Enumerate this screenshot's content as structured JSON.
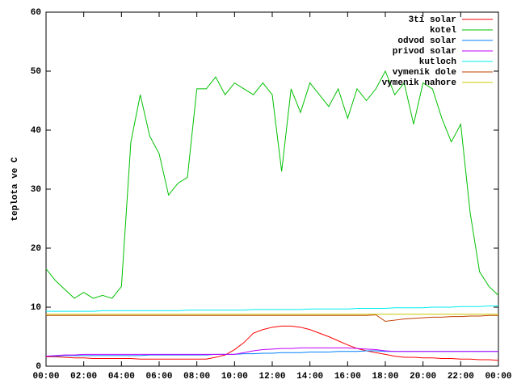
{
  "chart_data": {
    "type": "line",
    "y_label": "teplota ve C",
    "x": [
      0,
      0.5,
      1,
      1.5,
      2,
      2.5,
      3,
      3.5,
      4,
      4.5,
      5,
      5.5,
      6,
      6.5,
      7,
      7.5,
      8,
      8.5,
      9,
      9.5,
      10,
      10.5,
      11,
      11.5,
      12,
      12.5,
      13,
      13.5,
      14,
      14.5,
      15,
      15.5,
      16,
      16.5,
      17,
      17.5,
      18,
      18.5,
      19,
      19.5,
      20,
      20.5,
      21,
      21.5,
      22,
      22.5,
      23,
      23.5,
      24
    ],
    "xlim": [
      0,
      24
    ],
    "xticks": [
      {
        "value": 0,
        "label": "00:00"
      },
      {
        "value": 2,
        "label": "02:00"
      },
      {
        "value": 4,
        "label": "04:00"
      },
      {
        "value": 6,
        "label": "06:00"
      },
      {
        "value": 8,
        "label": "08:00"
      },
      {
        "value": 10,
        "label": "10:00"
      },
      {
        "value": 12,
        "label": "12:00"
      },
      {
        "value": 14,
        "label": "14:00"
      },
      {
        "value": 16,
        "label": "16:00"
      },
      {
        "value": 18,
        "label": "18:00"
      },
      {
        "value": 20,
        "label": "20:00"
      },
      {
        "value": 22,
        "label": "22:00"
      },
      {
        "value": 24,
        "label": "00:00"
      }
    ],
    "ylim": [
      0,
      60
    ],
    "yticks": [
      0,
      10,
      20,
      30,
      40,
      50,
      60
    ],
    "legend": "top-right",
    "series": [
      {
        "name": "3ti solar",
        "color": "#ff0000",
        "values": [
          1.6,
          1.6,
          1.5,
          1.4,
          1.4,
          1.3,
          1.3,
          1.3,
          1.3,
          1.3,
          1.2,
          1.2,
          1.2,
          1.2,
          1.2,
          1.2,
          1.2,
          1.2,
          1.5,
          1.9,
          2.8,
          4.0,
          5.6,
          6.2,
          6.6,
          6.8,
          6.8,
          6.6,
          6.2,
          5.6,
          5.0,
          4.3,
          3.6,
          3.0,
          2.6,
          2.3,
          2.0,
          1.7,
          1.5,
          1.5,
          1.4,
          1.4,
          1.3,
          1.3,
          1.2,
          1.2,
          1.1,
          1.1,
          1.0
        ]
      },
      {
        "name": "kotel",
        "color": "#00c000",
        "values": [
          16.5,
          14.5,
          13,
          11.5,
          12.5,
          11.5,
          12,
          11.5,
          13.5,
          38,
          46,
          39,
          36,
          29,
          31,
          32,
          47,
          47,
          49,
          46,
          48,
          47,
          46,
          48,
          46,
          33,
          47,
          43,
          48,
          46,
          44,
          47,
          42,
          47,
          45,
          47,
          50,
          46,
          48,
          41,
          48,
          47,
          42,
          38,
          41,
          26,
          16,
          13.5,
          12
        ]
      },
      {
        "name": "odvod solar",
        "color": "#0080ff",
        "values": [
          1.7,
          1.7,
          1.8,
          1.8,
          1.8,
          1.8,
          1.8,
          1.8,
          1.8,
          1.8,
          1.8,
          1.9,
          1.9,
          1.9,
          1.9,
          1.9,
          1.9,
          1.9,
          2.0,
          2.0,
          2.0,
          2.1,
          2.1,
          2.2,
          2.2,
          2.3,
          2.3,
          2.3,
          2.4,
          2.4,
          2.4,
          2.5,
          2.5,
          2.5,
          2.6,
          2.6,
          2.5,
          2.5,
          2.5,
          2.5,
          2.5,
          2.5,
          2.5,
          2.5,
          2.5,
          2.5,
          2.5,
          2.5,
          2.5
        ]
      },
      {
        "name": "privod solar",
        "color": "#c000ff",
        "values": [
          1.7,
          1.8,
          1.9,
          1.9,
          2.0,
          2.0,
          2.0,
          2.0,
          2.0,
          2.0,
          2.0,
          2.0,
          2.0,
          2.0,
          2.0,
          2.0,
          2.0,
          2.0,
          2.0,
          2.0,
          2.0,
          2.3,
          2.6,
          2.8,
          2.9,
          3.0,
          3.0,
          3.1,
          3.1,
          3.1,
          3.1,
          3.1,
          3.1,
          3.0,
          2.9,
          2.8,
          2.6,
          2.5,
          2.5,
          2.5,
          2.5,
          2.5,
          2.5,
          2.5,
          2.5,
          2.5,
          2.5,
          2.5,
          2.5
        ]
      },
      {
        "name": "kutloch",
        "color": "#00eeee",
        "values": [
          9.3,
          9.3,
          9.3,
          9.3,
          9.3,
          9.3,
          9.4,
          9.4,
          9.4,
          9.4,
          9.4,
          9.4,
          9.4,
          9.4,
          9.4,
          9.5,
          9.5,
          9.5,
          9.5,
          9.5,
          9.5,
          9.5,
          9.6,
          9.6,
          9.6,
          9.6,
          9.6,
          9.6,
          9.7,
          9.7,
          9.7,
          9.7,
          9.7,
          9.8,
          9.8,
          9.8,
          9.8,
          9.9,
          9.9,
          9.9,
          9.9,
          10.0,
          10.0,
          10.0,
          10.1,
          10.1,
          10.1,
          10.2,
          10.2
        ]
      },
      {
        "name": "vymenik dole",
        "color": "#c04000",
        "values": [
          8.6,
          8.6,
          8.6,
          8.6,
          8.6,
          8.6,
          8.6,
          8.6,
          8.6,
          8.6,
          8.6,
          8.6,
          8.6,
          8.6,
          8.6,
          8.6,
          8.6,
          8.6,
          8.6,
          8.6,
          8.6,
          8.6,
          8.6,
          8.6,
          8.6,
          8.6,
          8.6,
          8.6,
          8.6,
          8.6,
          8.6,
          8.6,
          8.6,
          8.6,
          8.6,
          8.7,
          7.6,
          7.8,
          8.0,
          8.1,
          8.2,
          8.3,
          8.3,
          8.4,
          8.4,
          8.5,
          8.5,
          8.6,
          8.6
        ]
      },
      {
        "name": "vymenik nahore",
        "color": "#c8c800",
        "values": [
          8.8,
          8.8,
          8.8,
          8.8,
          8.8,
          8.8,
          8.8,
          8.8,
          8.8,
          8.8,
          8.8,
          8.8,
          8.8,
          8.8,
          8.8,
          8.8,
          8.8,
          8.8,
          8.8,
          8.8,
          8.8,
          8.8,
          8.8,
          8.8,
          8.8,
          8.8,
          8.8,
          8.8,
          8.8,
          8.8,
          8.8,
          8.8,
          8.8,
          8.8,
          8.8,
          8.8,
          8.8,
          8.8,
          8.8,
          8.8,
          8.8,
          8.8,
          8.8,
          8.8,
          8.8,
          8.8,
          8.8,
          8.8,
          8.8
        ]
      }
    ]
  }
}
